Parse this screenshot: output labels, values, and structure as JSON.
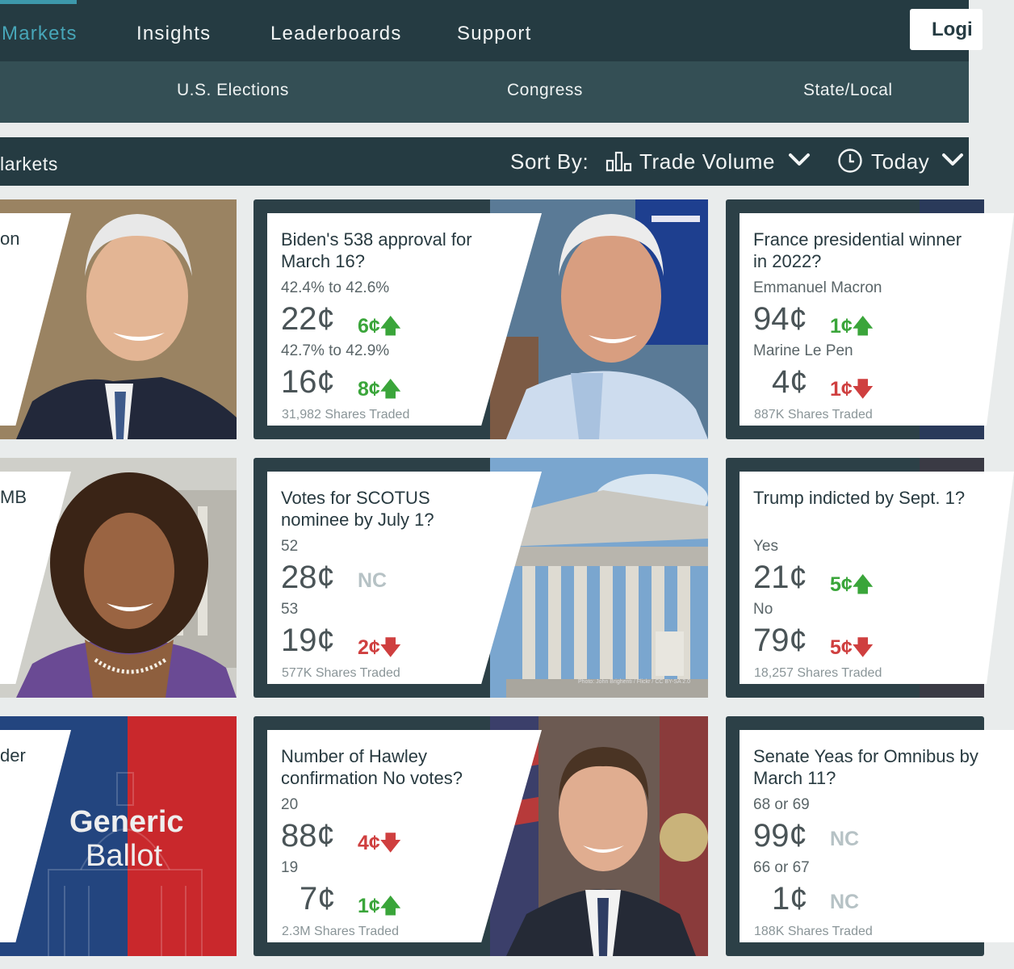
{
  "nav": {
    "items": [
      "Markets",
      "Insights",
      "Leaderboards",
      "Support"
    ],
    "login": "Logi"
  },
  "subnav": {
    "items": [
      "U.S. Elections",
      "Congress",
      "State/Local"
    ]
  },
  "sortbar": {
    "title": "larkets",
    "sort_label": "Sort By:",
    "sort_value": "Trade Volume",
    "time_value": "Today"
  },
  "partial_cards": [
    {
      "text": "on"
    },
    {
      "text": "MB"
    },
    {
      "text": "der",
      "ballot_line1": "Generic",
      "ballot_line2": "Ballot"
    }
  ],
  "cards": [
    {
      "question": "Biden's 538 approval for March 16?",
      "options": [
        {
          "label": "42.4% to 42.6%",
          "price": "22¢",
          "change": "6¢",
          "direction": "up"
        },
        {
          "label": "42.7% to 42.9%",
          "price": "16¢",
          "change": "8¢",
          "direction": "up"
        }
      ],
      "shares": "31,982 Shares Traded"
    },
    {
      "question": "France presidential winner in 2022?",
      "options": [
        {
          "label": "Emmanuel Macron",
          "price": "94¢",
          "change": "1¢",
          "direction": "up"
        },
        {
          "label": "Marine Le Pen",
          "price": "4¢",
          "change": "1¢",
          "direction": "down"
        }
      ],
      "shares": "887K Shares Traded"
    },
    {
      "question": "Votes for SCOTUS nominee by July 1?",
      "options": [
        {
          "label": "52",
          "price": "28¢",
          "change": "NC",
          "direction": "none"
        },
        {
          "label": "53",
          "price": "19¢",
          "change": "2¢",
          "direction": "down"
        }
      ],
      "shares": "577K Shares Traded",
      "credit": "Photo: John Brighenti / Flickr / CC BY-SA 2.0"
    },
    {
      "question": "Trump indicted by Sept. 1?",
      "options": [
        {
          "label": "Yes",
          "price": "21¢",
          "change": "5¢",
          "direction": "up"
        },
        {
          "label": "No",
          "price": "79¢",
          "change": "5¢",
          "direction": "down"
        }
      ],
      "shares": "18,257 Shares Traded"
    },
    {
      "question": "Number of Hawley confirmation No votes?",
      "options": [
        {
          "label": "20",
          "price": "88¢",
          "change": "4¢",
          "direction": "down"
        },
        {
          "label": "19",
          "price": "7¢",
          "change": "1¢",
          "direction": "up"
        }
      ],
      "shares": "2.3M Shares Traded"
    },
    {
      "question": "Senate Yeas for Omnibus by March 11?",
      "options": [
        {
          "label": "68 or 69",
          "price": "99¢",
          "change": "NC",
          "direction": "none"
        },
        {
          "label": "66 or 67",
          "price": "1¢",
          "change": "NC",
          "direction": "none"
        }
      ],
      "shares": "188K Shares Traded"
    }
  ],
  "colors": {
    "nav_bg": "#253b42",
    "subnav_bg": "#344f55",
    "accent": "#47a6b8",
    "up": "#3aa53a",
    "down": "#cf3f3f",
    "neutral": "#b6c2c5"
  }
}
